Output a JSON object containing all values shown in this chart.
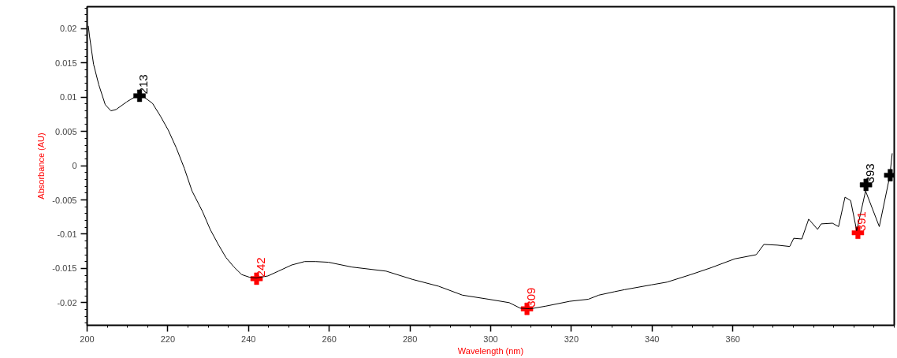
{
  "chart_data": {
    "type": "line",
    "xlabel": "Wavelength (nm)",
    "ylabel": "Absorbance (AU)",
    "xlim": [
      200,
      400
    ],
    "ylim": [
      -0.0233,
      0.0232
    ],
    "xticks": [
      200,
      220,
      240,
      260,
      280,
      300,
      320,
      340,
      360
    ],
    "yticks": [
      -0.02,
      -0.015,
      -0.01,
      -0.005,
      0,
      0.005,
      0.01,
      0.015,
      0.02
    ],
    "grid": false,
    "line_style": "solid",
    "series": [
      {
        "type": "line",
        "color": "#000000",
        "marker": "none",
        "x": [
          200.3,
          200.6,
          201.6,
          202.9,
          204.5,
          205.9,
          207.2,
          209.8,
          212.3,
          213.9,
          216.2,
          218.2,
          220.1,
          222.1,
          224.1,
          226.0,
          228.6,
          230.5,
          232.5,
          234.4,
          236.4,
          238.3,
          240.3,
          241.9,
          244.8,
          247.4,
          250.7,
          253.9,
          256.6,
          259.8,
          265.6,
          274.1,
          280.6,
          287.1,
          293.0,
          299.5,
          304.6,
          307.3,
          309.8,
          313.7,
          319.6,
          324.2,
          326.8,
          330.7,
          333.2,
          339.8,
          343.7,
          349.6,
          354.6,
          360.5,
          365.8,
          367.7,
          371.0,
          374.1,
          375.1,
          377.1,
          378.8,
          381.0,
          381.9,
          384.7,
          386.2,
          387.8,
          389.2,
          390.7,
          392.9,
          396.3,
          398.9,
          399.5
        ],
        "values": [
          0.0204,
          0.0189,
          0.0148,
          0.0118,
          0.0089,
          0.008,
          0.0082,
          0.0093,
          0.0102,
          0.0101,
          0.0091,
          0.0072,
          0.0052,
          0.0026,
          -0.0004,
          -0.0037,
          -0.0067,
          -0.0093,
          -0.0115,
          -0.0134,
          -0.0148,
          -0.0159,
          -0.0163,
          -0.0164,
          -0.0161,
          -0.0154,
          -0.0145,
          -0.014,
          -0.014,
          -0.0141,
          -0.0148,
          -0.0154,
          -0.0166,
          -0.0176,
          -0.0189,
          -0.0195,
          -0.02,
          -0.0208,
          -0.0209,
          -0.0205,
          -0.0198,
          -0.0195,
          -0.0189,
          -0.0184,
          -0.0181,
          -0.0174,
          -0.017,
          -0.0159,
          -0.0149,
          -0.0136,
          -0.013,
          -0.0115,
          -0.0116,
          -0.0118,
          -0.0106,
          -0.0107,
          -0.0078,
          -0.0093,
          -0.0085,
          -0.0084,
          -0.0089,
          -0.0046,
          -0.0051,
          -0.0095,
          -0.0037,
          -0.0089,
          -0.0015,
          0.0018
        ]
      },
      {
        "type": "scatter",
        "color": "#000000",
        "marker": "cross",
        "x": [
          213,
          393,
          399
        ],
        "values": [
          0.0102,
          -0.0028,
          -0.0014
        ]
      },
      {
        "type": "scatter",
        "color": "#ff0000",
        "marker": "cross",
        "x": [
          242,
          309,
          391
        ],
        "values": [
          -0.0165,
          -0.0209,
          -0.0098
        ]
      }
    ],
    "annotations": [
      {
        "text": "213",
        "x": 213,
        "y": 0.0102
      },
      {
        "text": "242",
        "x": 242,
        "y": -0.0165
      },
      {
        "text": "309",
        "x": 309,
        "y": -0.0209
      },
      {
        "text": "391",
        "x": 391,
        "y": -0.0098
      },
      {
        "text": "393",
        "x": 393,
        "y": -0.0028
      }
    ]
  }
}
